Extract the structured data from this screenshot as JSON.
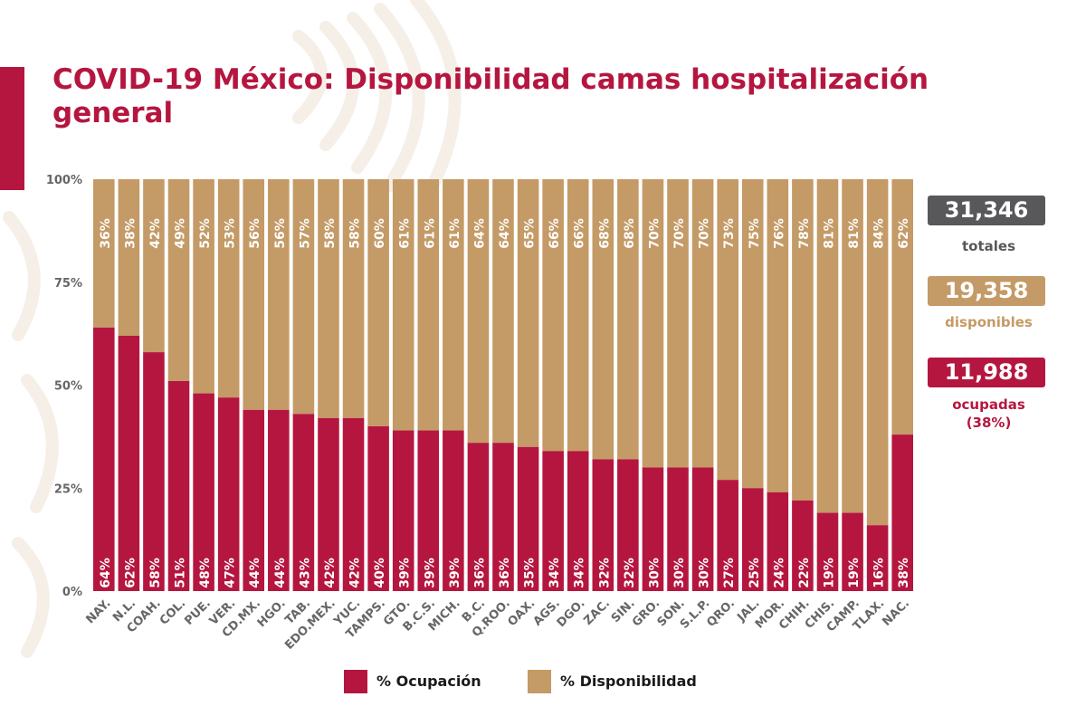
{
  "header": {
    "title": "COVID-19 México: Disponibilidad camas hospitalización general"
  },
  "colors": {
    "ocupacion": "#b5163f",
    "disponibilidad": "#c49a66",
    "totales_box": "#58585a",
    "accent": "#b5163f"
  },
  "stats": {
    "totales": {
      "value": "31,346",
      "label": "totales"
    },
    "disponibles": {
      "value": "19,358",
      "label": "disponibles"
    },
    "ocupadas": {
      "value": "11,988",
      "label": "ocupadas",
      "label2": "(38%)"
    }
  },
  "legend": {
    "ocupacion": "% Ocupación",
    "disponibilidad": "% Disponibilidad"
  },
  "chart_data": {
    "type": "bar",
    "stacked": true,
    "categories": [
      "NAY.",
      "N.L.",
      "COAH.",
      "COL.",
      "PUE.",
      "VER.",
      "CD.MX.",
      "HGO.",
      "TAB.",
      "EDO.MEX.",
      "YUC.",
      "TAMPS.",
      "GTO.",
      "B.C.S.",
      "MICH.",
      "B.C.",
      "Q.ROO.",
      "OAX.",
      "AGS.",
      "DGO.",
      "ZAC.",
      "SIN.",
      "GRO.",
      "SON.",
      "S.L.P.",
      "QRO.",
      "JAL.",
      "MOR.",
      "CHIH.",
      "CHIS.",
      "CAMP.",
      "TLAX.",
      "NAC."
    ],
    "series": [
      {
        "name": "% Ocupación",
        "values": [
          64,
          62,
          58,
          51,
          48,
          47,
          44,
          44,
          43,
          42,
          42,
          40,
          39,
          39,
          39,
          36,
          36,
          35,
          34,
          34,
          32,
          32,
          30,
          30,
          30,
          27,
          25,
          24,
          22,
          19,
          19,
          16,
          38
        ]
      },
      {
        "name": "% Disponibilidad",
        "values": [
          36,
          38,
          42,
          49,
          52,
          53,
          56,
          56,
          57,
          58,
          58,
          60,
          61,
          61,
          61,
          64,
          64,
          65,
          66,
          66,
          68,
          68,
          70,
          70,
          70,
          73,
          75,
          76,
          78,
          81,
          81,
          84,
          62
        ]
      }
    ],
    "yticks": [
      0,
      25,
      50,
      75,
      100
    ],
    "ytick_labels": [
      "0%",
      "25%",
      "50%",
      "75%",
      "100%"
    ],
    "ylim": [
      0,
      100
    ],
    "grid": false,
    "legend_position": "bottom"
  }
}
